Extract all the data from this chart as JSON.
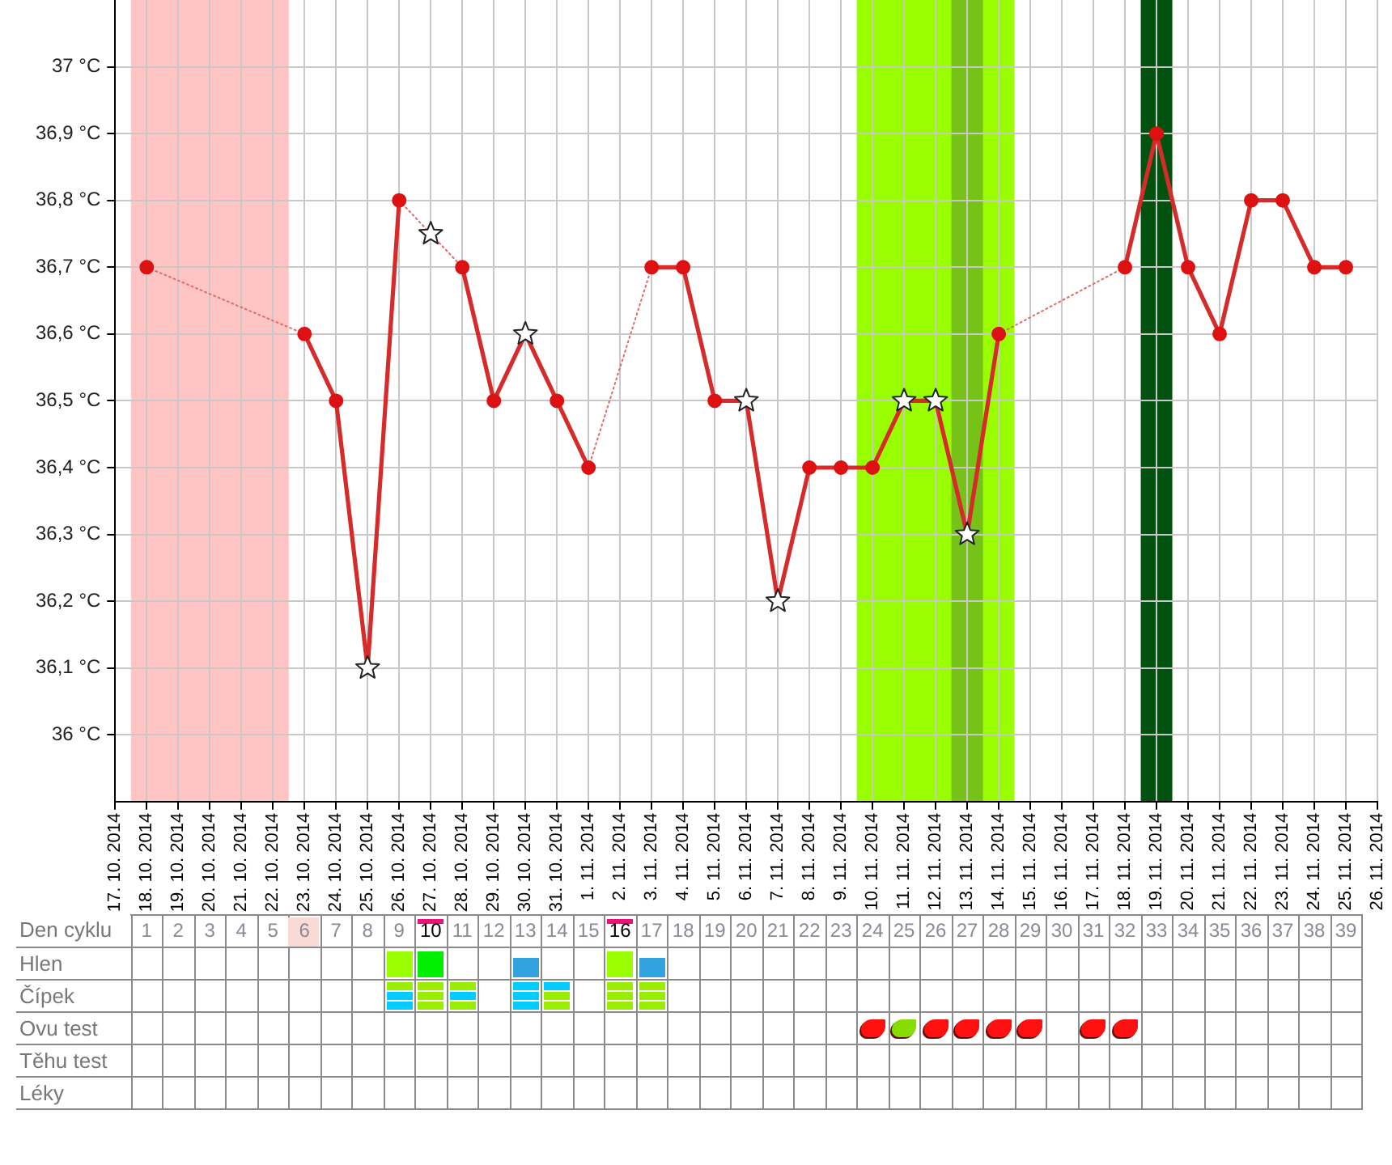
{
  "chart_data": [
    {
      "type": "line",
      "categories": [
        "17. 10. 2014",
        "18. 10. 2014",
        "19. 10. 2014",
        "20. 10. 2014",
        "21. 10. 2014",
        "22. 10. 2014",
        "23. 10. 2014",
        "24. 10. 2014",
        "25. 10. 2014",
        "26. 10. 2014",
        "27. 10. 2014",
        "28. 10. 2014",
        "29. 10. 2014",
        "30. 10. 2014",
        "31. 10. 2014",
        "1. 11. 2014",
        "2. 11. 2014",
        "3. 11. 2014",
        "4. 11. 2014",
        "5. 11. 2014",
        "6. 11. 2014",
        "7. 11. 2014",
        "8. 11. 2014",
        "9. 11. 2014",
        "10. 11. 2014",
        "11. 11. 2014",
        "12. 11. 2014",
        "13. 11. 2014",
        "14. 11. 2014",
        "15. 11. 2014",
        "16. 11. 2014",
        "17. 11. 2014",
        "18. 11. 2014",
        "19. 11. 2014",
        "20. 11. 2014",
        "21. 11. 2014",
        "22. 11. 2014",
        "23. 11. 2014",
        "24. 11. 2014",
        "25. 11. 2014",
        "26. 11. 2014"
      ],
      "series": [
        {
          "type": "line",
          "color": "#d62b2b",
          "line_style": "solid",
          "marker": "none",
          "values": [
            null,
            null,
            null,
            null,
            null,
            null,
            36.6,
            36.5,
            36.1,
            36.8,
            null,
            36.7,
            36.5,
            36.6,
            36.5,
            36.4,
            null,
            36.7,
            36.7,
            36.5,
            36.5,
            36.2,
            36.4,
            36.4,
            36.4,
            36.5,
            36.5,
            36.3,
            36.6,
            null,
            null,
            null,
            36.7,
            36.9,
            36.7,
            36.6,
            36.8,
            36.8,
            36.7,
            36.7,
            null
          ]
        },
        {
          "type": "line",
          "color": "#e06a6a",
          "line_style": "dotted",
          "marker": "none",
          "x": [
            "18. 10. 2014",
            "23. 10. 2014"
          ],
          "values": [
            36.7,
            36.6
          ]
        },
        {
          "type": "line",
          "color": "#e06a6a",
          "line_style": "dotted",
          "marker": "none",
          "x": [
            "26. 10. 2014",
            "27. 10. 2014",
            "28. 10. 2014"
          ],
          "values": [
            36.8,
            36.75,
            36.7
          ]
        },
        {
          "type": "line",
          "color": "#e06a6a",
          "line_style": "dotted",
          "marker": "none",
          "x": [
            "1. 11. 2014",
            "3. 11. 2014"
          ],
          "values": [
            36.4,
            36.7
          ]
        },
        {
          "type": "line",
          "color": "#e06a6a",
          "line_style": "dotted",
          "marker": "none",
          "x": [
            "14. 11. 2014",
            "18. 11. 2014"
          ],
          "values": [
            36.6,
            36.7
          ]
        },
        {
          "type": "scatter",
          "color": "#dd1111",
          "marker": "circle",
          "values": [
            null,
            36.7,
            null,
            null,
            null,
            null,
            36.6,
            36.5,
            null,
            36.8,
            null,
            36.7,
            36.5,
            null,
            36.5,
            36.4,
            null,
            36.7,
            36.7,
            36.5,
            null,
            null,
            36.4,
            36.4,
            36.4,
            null,
            null,
            null,
            36.6,
            null,
            null,
            null,
            36.7,
            36.9,
            36.7,
            36.6,
            36.8,
            36.8,
            36.7,
            36.7,
            null
          ]
        },
        {
          "type": "scatter",
          "color": "#ffffff",
          "marker": "star",
          "values": [
            null,
            null,
            null,
            null,
            null,
            null,
            null,
            null,
            36.1,
            null,
            36.75,
            null,
            null,
            36.6,
            null,
            null,
            null,
            null,
            null,
            null,
            36.5,
            36.2,
            null,
            null,
            null,
            36.5,
            36.5,
            36.3,
            null,
            null,
            null,
            null,
            null,
            null,
            null,
            null,
            null,
            null,
            null,
            null,
            null
          ]
        }
      ],
      "ylim": [
        35.9,
        37.1
      ],
      "yticks": [
        {
          "value": 36,
          "label": "36 °C"
        },
        {
          "value": 36.1,
          "label": "36,1 °C"
        },
        {
          "value": 36.2,
          "label": "36,2 °C"
        },
        {
          "value": 36.3,
          "label": "36,3 °C"
        },
        {
          "value": 36.4,
          "label": "36,4 °C"
        },
        {
          "value": 36.5,
          "label": "36,5 °C"
        },
        {
          "value": 36.6,
          "label": "36,6 °C"
        },
        {
          "value": 36.7,
          "label": "36,7 °C"
        },
        {
          "value": 36.8,
          "label": "36,8 °C"
        },
        {
          "value": 36.9,
          "label": "36,9 °C"
        },
        {
          "value": 37,
          "label": "37 °C"
        }
      ],
      "x2label": "Den cyklu",
      "x2lim": [
        0.5,
        39.5
      ],
      "x2ticks": [
        1,
        2,
        3,
        4,
        5,
        6,
        7,
        8,
        9,
        10,
        11,
        12,
        13,
        14,
        15,
        16,
        17,
        18,
        19,
        20,
        21,
        22,
        23,
        24,
        25,
        26,
        27,
        28,
        29,
        30,
        31,
        32,
        33,
        34,
        35,
        36,
        37,
        38,
        39
      ],
      "grid": true,
      "bands": [
        {
          "axis": "x",
          "from": "18. 10. 2014",
          "to": "22. 10. 2014",
          "color": "#ffc4c4"
        },
        {
          "axis": "x",
          "from": "10. 11. 2014",
          "to": "14. 11. 2014",
          "color": "#99ff00"
        },
        {
          "axis": "x",
          "from": "13. 11. 2014",
          "to": "13. 11. 2014",
          "color": "#76c219"
        },
        {
          "axis": "x",
          "from": "19. 11. 2014",
          "to": "19. 11. 2014",
          "color": "#02520f"
        }
      ]
    },
    {
      "type": "other",
      "y_categories": [
        "Hlen",
        "Čípek",
        "Ovu test",
        "Těhu test",
        "Léky"
      ]
    }
  ]
}
